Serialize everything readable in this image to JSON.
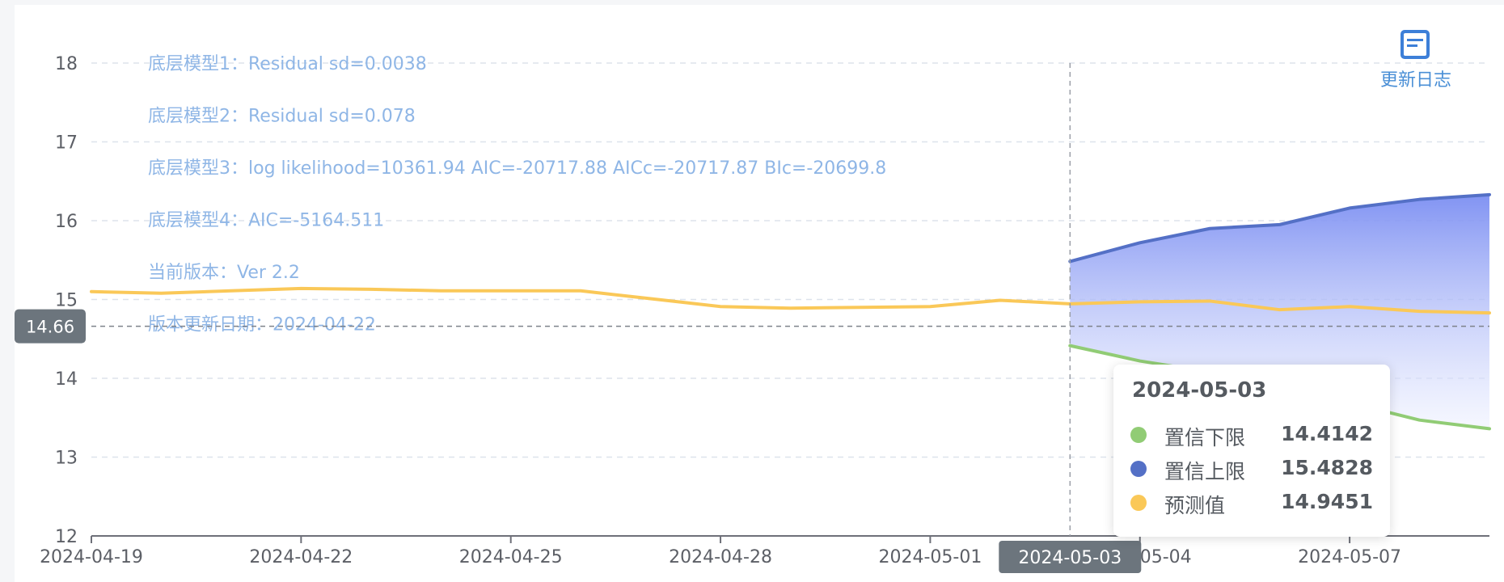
{
  "chart_data": {
    "type": "line",
    "x": [
      "2024-04-19",
      "2024-04-20",
      "2024-04-21",
      "2024-04-22",
      "2024-04-23",
      "2024-04-24",
      "2024-04-25",
      "2024-04-26",
      "2024-04-27",
      "2024-04-28",
      "2024-04-29",
      "2024-04-30",
      "2024-05-01",
      "2024-05-02",
      "2024-05-03",
      "2024-05-04",
      "2024-05-05",
      "2024-05-06",
      "2024-05-07",
      "2024-05-08",
      "2024-05-09"
    ],
    "xticks": [
      "2024-04-19",
      "2024-04-22",
      "2024-04-25",
      "2024-04-28",
      "2024-05-01",
      "2024-05-04",
      "2024-05-07"
    ],
    "ylim": [
      12,
      18
    ],
    "yticks": [
      12,
      13,
      14,
      15,
      16,
      17,
      18
    ],
    "grid": true,
    "series": [
      {
        "name": "置信下限",
        "color": "#91cc75",
        "values": [
          null,
          null,
          null,
          null,
          null,
          null,
          null,
          null,
          null,
          null,
          null,
          null,
          null,
          null,
          14.4142,
          14.22,
          14.08,
          13.82,
          13.69,
          13.47,
          13.36
        ]
      },
      {
        "name": "置信上限",
        "color": "#5470c6",
        "values": [
          null,
          null,
          null,
          null,
          null,
          null,
          null,
          null,
          null,
          null,
          null,
          null,
          null,
          null,
          15.4828,
          15.72,
          15.9,
          15.95,
          16.16,
          16.27,
          16.33
        ]
      },
      {
        "name": "预测值",
        "color": "#fac858",
        "values": [
          15.1,
          15.08,
          15.11,
          15.14,
          15.13,
          15.11,
          15.11,
          15.11,
          15.01,
          14.91,
          14.89,
          14.9,
          14.91,
          14.99,
          14.9451,
          14.97,
          14.98,
          14.87,
          14.91,
          14.85,
          14.83
        ]
      }
    ],
    "annotations": [
      "底层模型1：Residual sd=0.0038",
      "底层模型2：Residual sd=0.078",
      "底层模型3：log likelihood=10361.94 AIC=-20717.88 AICc=-20717.87 BIc=-20699.8",
      "底层模型4：AIC=-5164.511",
      "当前版本：Ver 2.2",
      "版本更新日期：2024-04-22"
    ],
    "crosshair": {
      "x": "2024-05-03",
      "y": 14.66,
      "x_label": "2024-05-03",
      "y_label": "14.66"
    },
    "tooltip": {
      "date": "2024-05-03",
      "rows": [
        {
          "name": "置信下限",
          "value": "14.4142",
          "color": "#91cc75"
        },
        {
          "name": "置信上限",
          "value": "15.4828",
          "color": "#5470c6"
        },
        {
          "name": "预测值",
          "value": "14.9451",
          "color": "#fac858"
        }
      ]
    }
  },
  "changelog": {
    "label": "更新日志",
    "icon": "document-icon",
    "color": "#3d7fd8"
  }
}
